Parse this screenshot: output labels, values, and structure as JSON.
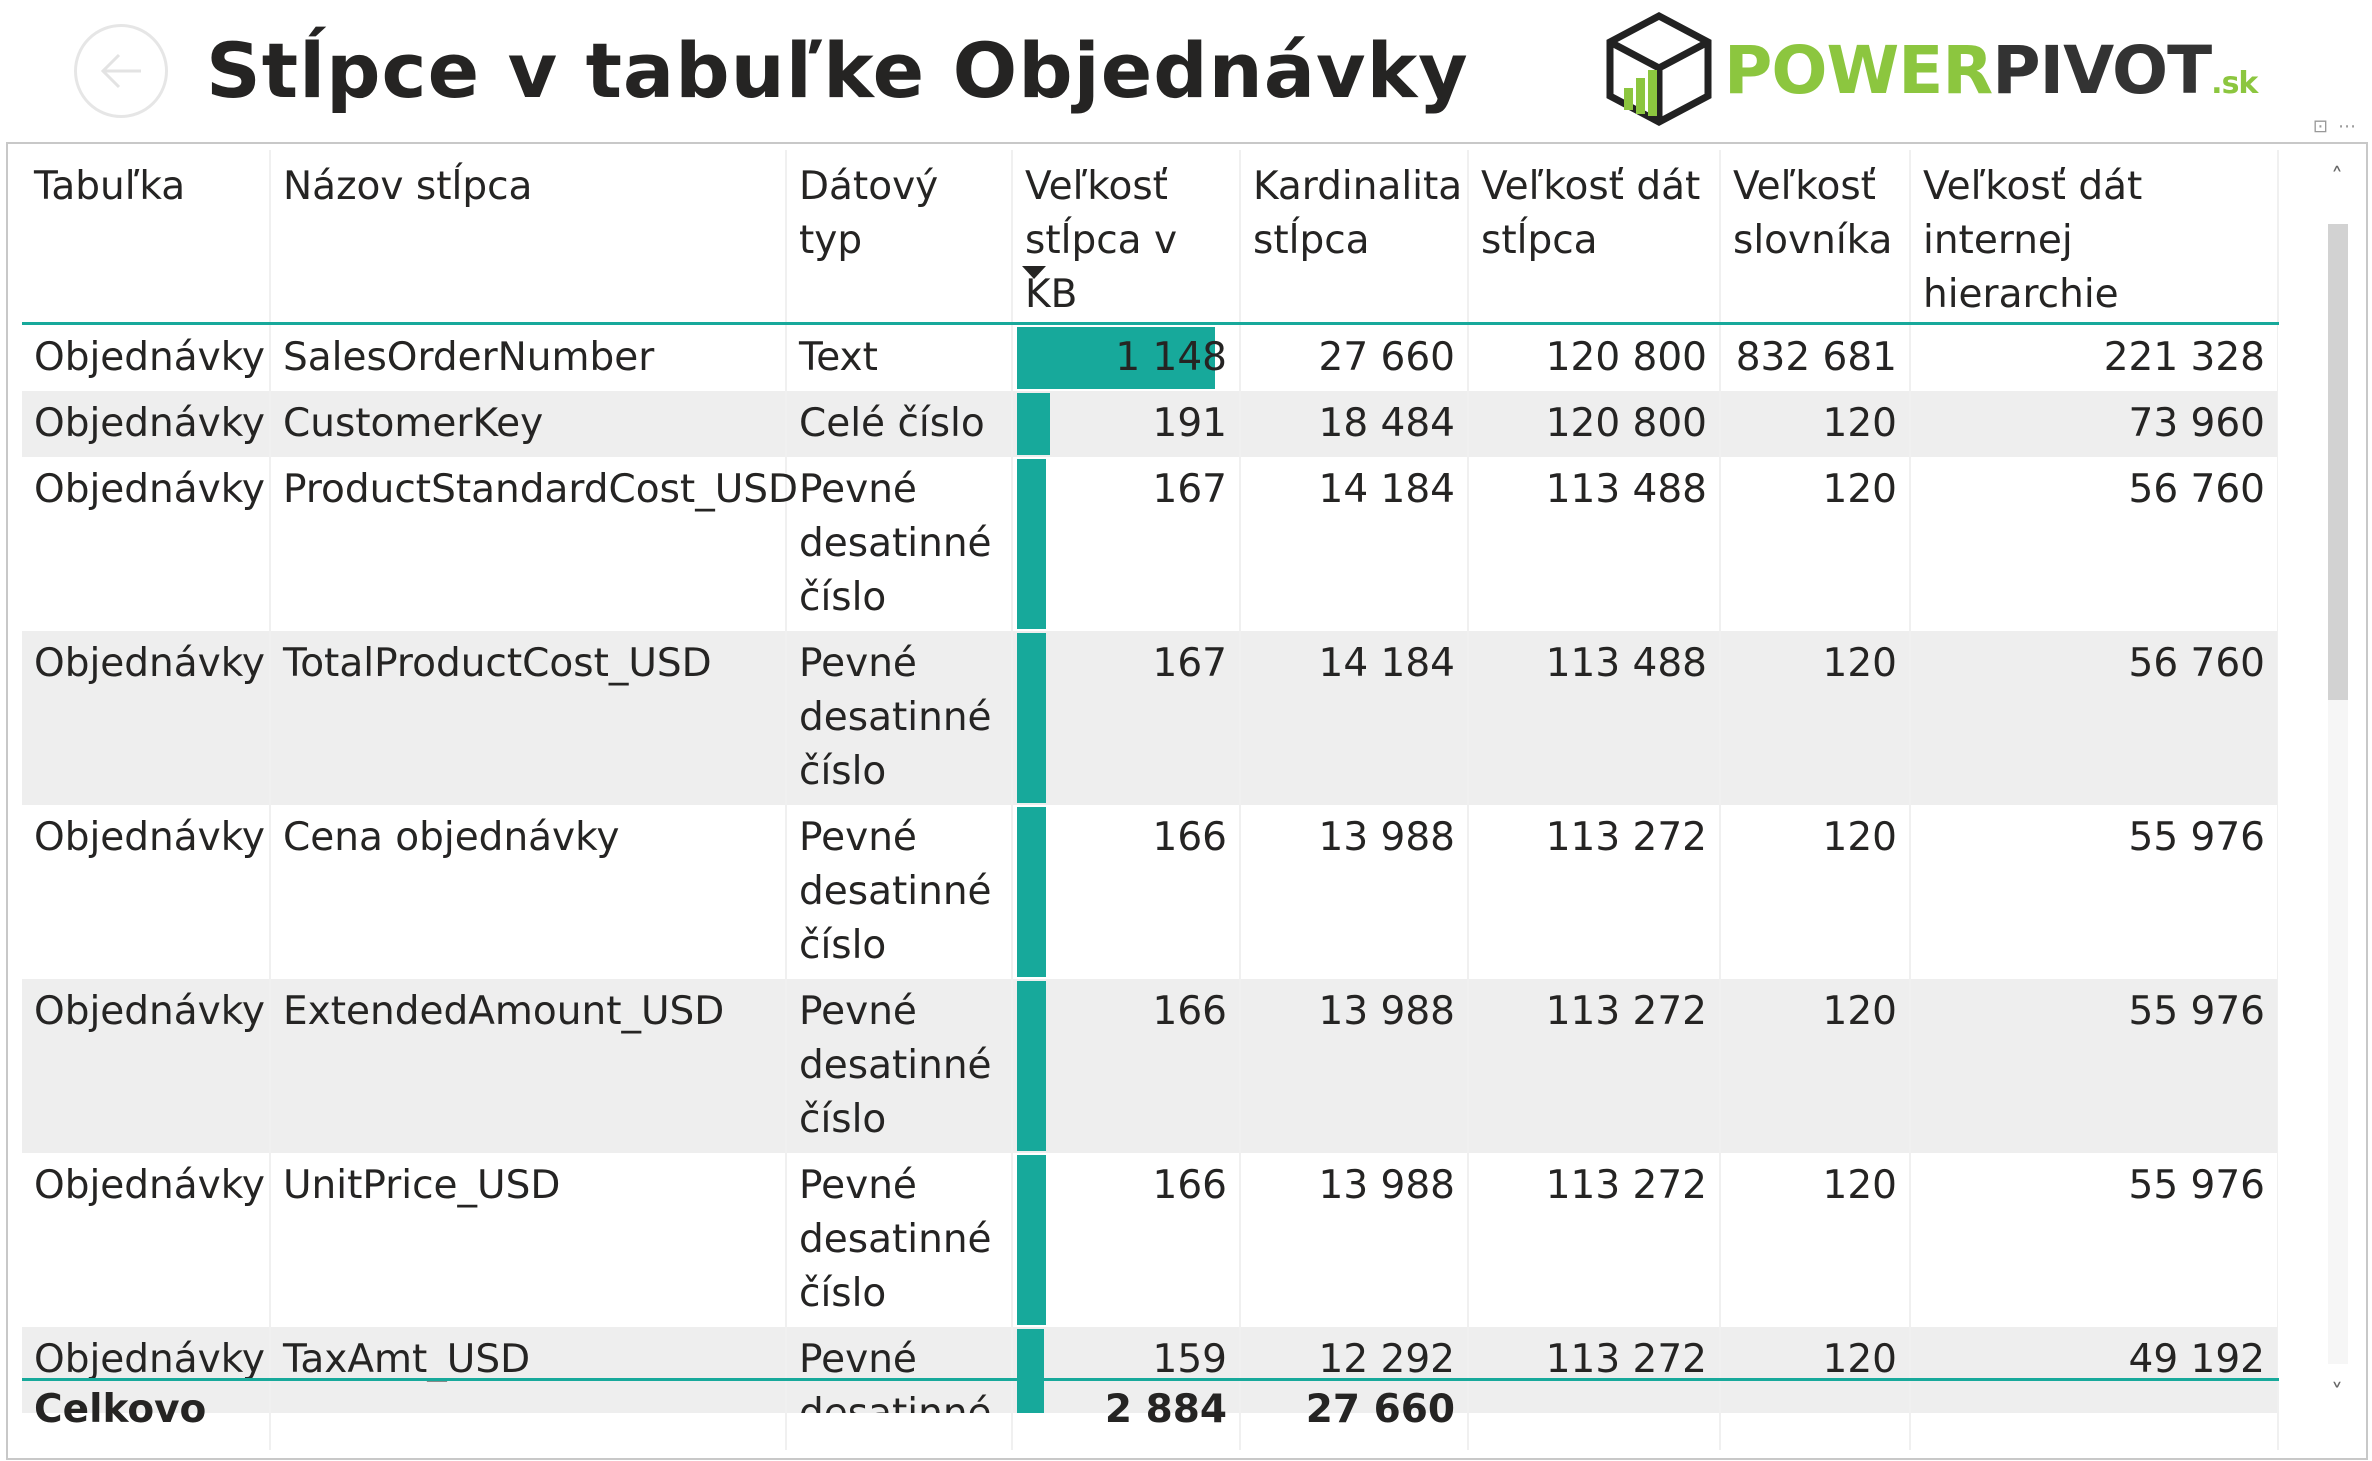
{
  "header": {
    "title": "Stĺpce v tabuľke Objednávky",
    "logo_text_main": "POWER",
    "logo_text_bold": "PIVOT",
    "logo_text_suffix": ".sk"
  },
  "colors": {
    "accent": "#17a99b",
    "logo_green": "#8cc63f",
    "logo_dark": "#333333"
  },
  "table": {
    "columns": [
      "Tabuľka",
      "Názov stĺpca",
      "Dátový typ",
      "Veľkosť stĺpca v KB",
      "Kardinalita stĺpca",
      "Veľkosť dát stĺpca",
      "Veľkosť slovníka",
      "Veľkosť dát internej hierarchie"
    ],
    "sorted_column": "Veľkosť stĺpca v KB",
    "rows": [
      {
        "table": "Objednávky",
        "column": "SalesOrderNumber",
        "type": "Text",
        "size_kb": "1 148",
        "size_kb_value": 1148,
        "cardinality": "27 660",
        "data_size": "120 800",
        "dictionary": "832 681",
        "hierarchy": "221 328"
      },
      {
        "table": "Objednávky",
        "column": "CustomerKey",
        "type": "Celé číslo",
        "size_kb": "191",
        "size_kb_value": 191,
        "cardinality": "18 484",
        "data_size": "120 800",
        "dictionary": "120",
        "hierarchy": "73 960"
      },
      {
        "table": "Objednávky",
        "column": "ProductStandardCost_USD",
        "type": "Pevné desatinné číslo",
        "size_kb": "167",
        "size_kb_value": 167,
        "cardinality": "14 184",
        "data_size": "113 488",
        "dictionary": "120",
        "hierarchy": "56 760"
      },
      {
        "table": "Objednávky",
        "column": "TotalProductCost_USD",
        "type": "Pevné desatinné číslo",
        "size_kb": "167",
        "size_kb_value": 167,
        "cardinality": "14 184",
        "data_size": "113 488",
        "dictionary": "120",
        "hierarchy": "56 760"
      },
      {
        "table": "Objednávky",
        "column": "Cena objednávky",
        "type": "Pevné desatinné číslo",
        "size_kb": "166",
        "size_kb_value": 166,
        "cardinality": "13 988",
        "data_size": "113 272",
        "dictionary": "120",
        "hierarchy": "55 976"
      },
      {
        "table": "Objednávky",
        "column": "ExtendedAmount_USD",
        "type": "Pevné desatinné číslo",
        "size_kb": "166",
        "size_kb_value": 166,
        "cardinality": "13 988",
        "data_size": "113 272",
        "dictionary": "120",
        "hierarchy": "55 976"
      },
      {
        "table": "Objednávky",
        "column": "UnitPrice_USD",
        "type": "Pevné desatinné číslo",
        "size_kb": "166",
        "size_kb_value": 166,
        "cardinality": "13 988",
        "data_size": "113 272",
        "dictionary": "120",
        "hierarchy": "55 976"
      },
      {
        "table": "Objednávky",
        "column": "TaxAmt_USD",
        "type": "Pevné desatinné",
        "size_kb": "159",
        "size_kb_value": 159,
        "cardinality": "12 292",
        "data_size": "113 272",
        "dictionary": "120",
        "hierarchy": "49 192"
      }
    ],
    "bar_max_value": 1148,
    "total": {
      "label": "Celkovo",
      "size_kb": "2 884",
      "cardinality": "27 660"
    }
  }
}
